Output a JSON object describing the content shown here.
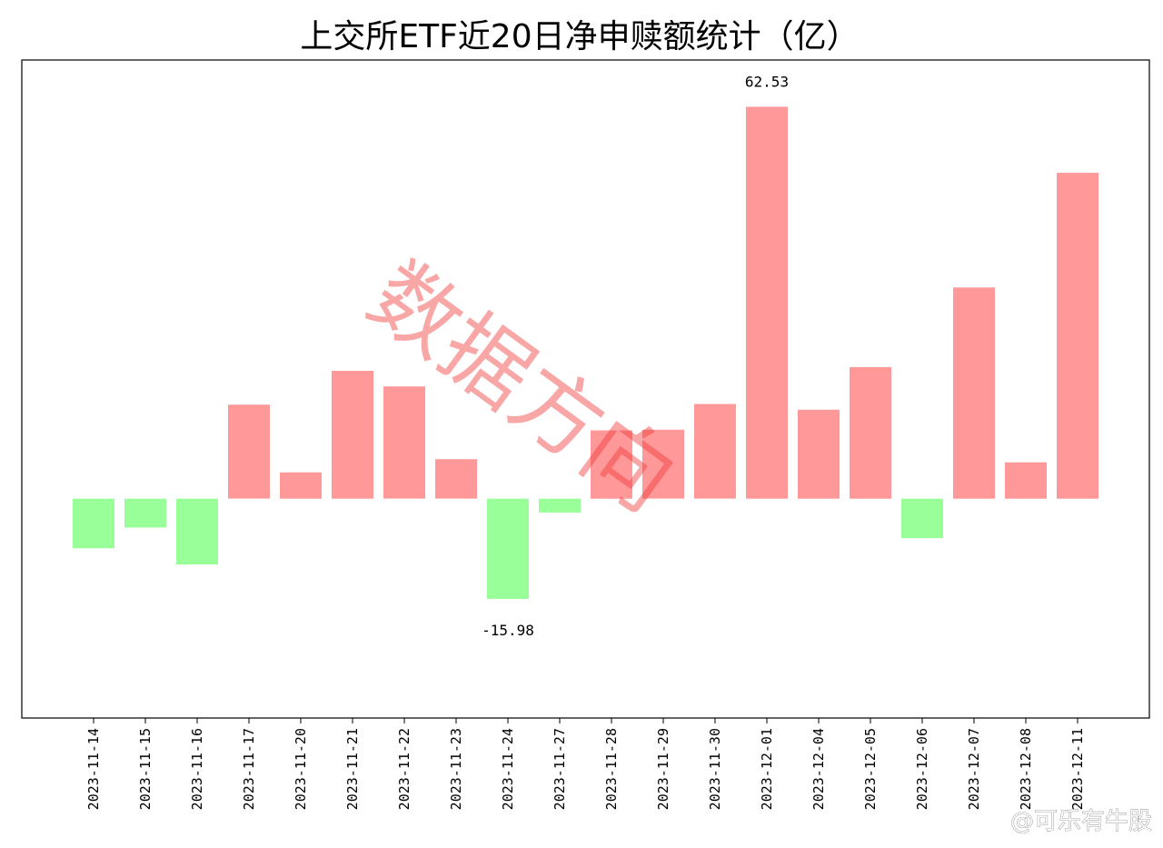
{
  "chart_data": {
    "type": "bar",
    "title": "上交所ETF近20日净申赎额统计（亿）",
    "xlabel": "",
    "ylabel": "",
    "ylim": [
      -35,
      70
    ],
    "grid": false,
    "categories": [
      "2023-11-14",
      "2023-11-15",
      "2023-11-16",
      "2023-11-17",
      "2023-11-20",
      "2023-11-21",
      "2023-11-22",
      "2023-11-23",
      "2023-11-24",
      "2023-11-27",
      "2023-11-28",
      "2023-11-29",
      "2023-11-30",
      "2023-12-01",
      "2023-12-04",
      "2023-12-05",
      "2023-12-06",
      "2023-12-07",
      "2023-12-08",
      "2023-12-11"
    ],
    "values": [
      -7.9,
      -4.6,
      -10.5,
      15.0,
      4.2,
      20.4,
      17.9,
      6.3,
      -15.98,
      -2.2,
      10.9,
      11.0,
      15.1,
      62.53,
      14.2,
      21.0,
      -6.3,
      33.7,
      5.8,
      52.0
    ],
    "annotations": [
      {
        "category": "2023-12-01",
        "text": "62.53"
      },
      {
        "category": "2023-11-24",
        "text": "-15.98"
      }
    ],
    "positive_color": "#ff9999",
    "negative_color": "#99ff99"
  },
  "watermark": {
    "text": "数据方向"
  },
  "footer": {
    "weibo_credit": "@可乐有牛股"
  }
}
